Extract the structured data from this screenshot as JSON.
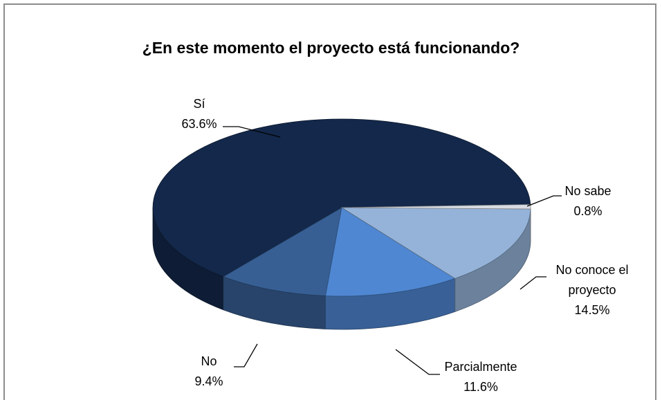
{
  "chart_data": {
    "type": "pie3d",
    "title": "¿En este momento el proyecto está funcionando?",
    "categories": [
      "Sí",
      "No",
      "Parcialmente",
      "No conoce el proyecto",
      "No sabe"
    ],
    "values": [
      63.6,
      9.4,
      11.6,
      14.5,
      0.8
    ],
    "value_labels": [
      "63.6%",
      "9.4%",
      "11.6%",
      "14.5%",
      "0.8%"
    ],
    "colors": [
      "#13284a",
      "#375f94",
      "#4f87d2",
      "#95b3d9",
      "#d8dce2"
    ]
  }
}
